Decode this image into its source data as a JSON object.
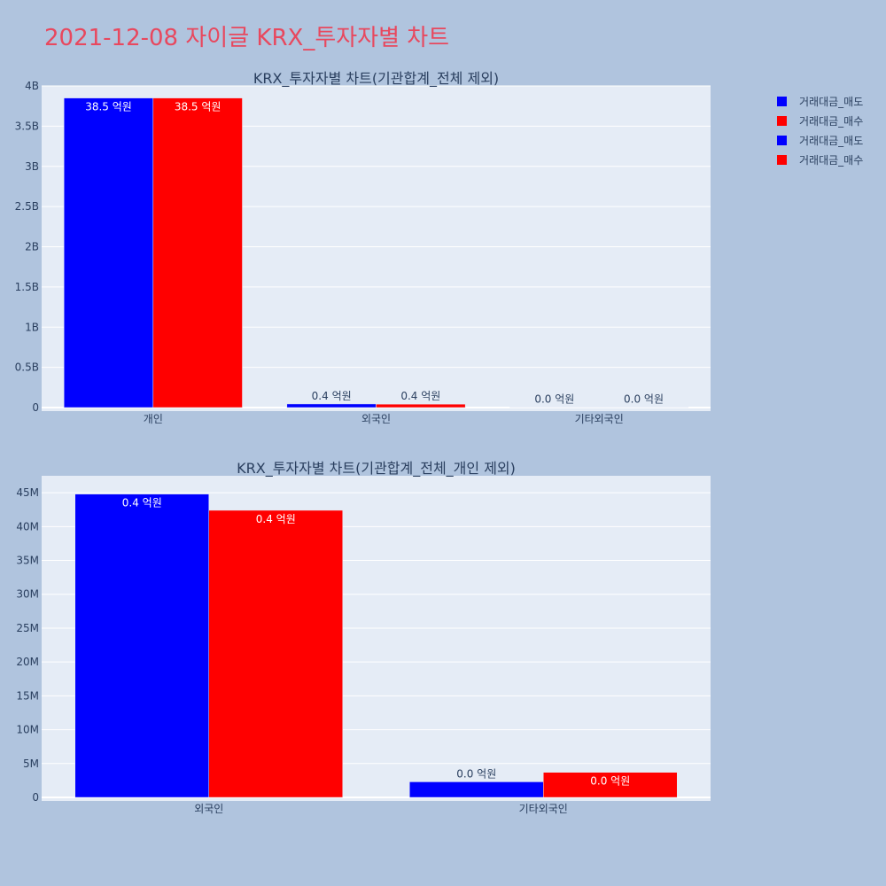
{
  "title": "2021-12-08 자이글 KRX_투자자별 차트",
  "legend": [
    {
      "label": "거래대금_매도",
      "color": "#0000ff"
    },
    {
      "label": "거래대금_매수",
      "color": "#ff0000"
    },
    {
      "label": "거래대금_매도",
      "color": "#0000ff"
    },
    {
      "label": "거래대금_매수",
      "color": "#ff0000"
    }
  ],
  "chart_data": [
    {
      "type": "bar",
      "title": "KRX_투자자별 차트(기관합계_전체 제외)",
      "categories": [
        "개인",
        "외국인",
        "기타외국인"
      ],
      "ylim": [
        0,
        4000000000
      ],
      "yticks": [
        0,
        500000000,
        1000000000,
        1500000000,
        2000000000,
        2500000000,
        3000000000,
        3500000000,
        4000000000
      ],
      "ytick_labels": [
        "0",
        "0.5B",
        "1B",
        "1.5B",
        "2B",
        "2.5B",
        "3B",
        "3.5B",
        "4B"
      ],
      "grid": true,
      "series": [
        {
          "name": "거래대금_매도",
          "color": "#0000ff",
          "values": [
            3850000000,
            44800000,
            2300000
          ],
          "labels": [
            "38.5 억원",
            "0.4 억원",
            "0.0 억원"
          ]
        },
        {
          "name": "거래대금_매수",
          "color": "#ff0000",
          "values": [
            3850000000,
            42400000,
            3700000
          ],
          "labels": [
            "38.5 억원",
            "0.4 억원",
            "0.0 억원"
          ]
        }
      ]
    },
    {
      "type": "bar",
      "title": "KRX_투자자별 차트(기관합계_전체_개인 제외)",
      "categories": [
        "외국인",
        "기타외국인"
      ],
      "ylim": [
        0,
        47500000
      ],
      "yticks": [
        0,
        5000000,
        10000000,
        15000000,
        20000000,
        25000000,
        30000000,
        35000000,
        40000000,
        45000000
      ],
      "ytick_labels": [
        "0",
        "5M",
        "10M",
        "15M",
        "20M",
        "25M",
        "30M",
        "35M",
        "40M",
        "45M"
      ],
      "grid": true,
      "series": [
        {
          "name": "거래대금_매도",
          "color": "#0000ff",
          "values": [
            44800000,
            2300000
          ],
          "labels": [
            "0.4 억원",
            "0.0 억원"
          ]
        },
        {
          "name": "거래대금_매수",
          "color": "#ff0000",
          "values": [
            42400000,
            3700000
          ],
          "labels": [
            "0.4 억원",
            "0.0 억원"
          ]
        }
      ]
    }
  ]
}
